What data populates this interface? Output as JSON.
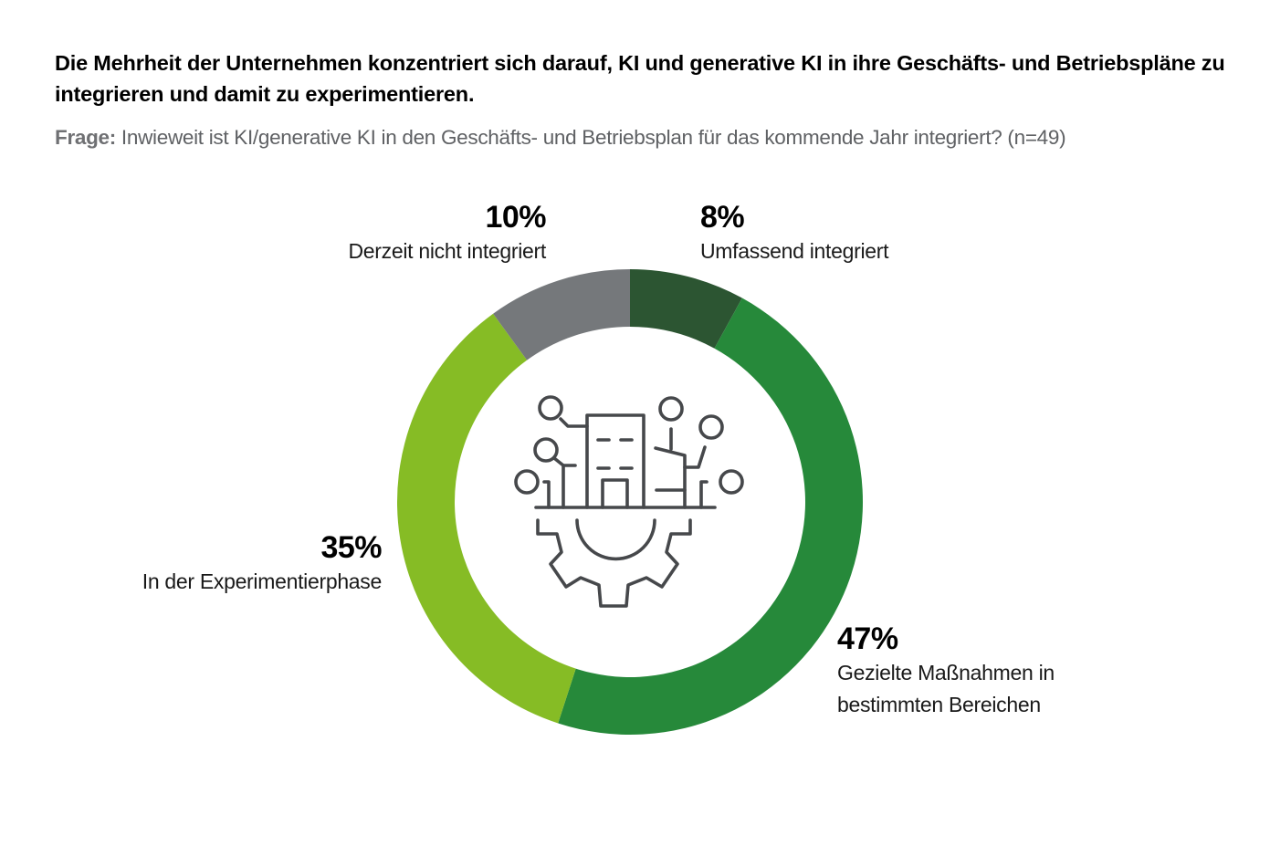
{
  "title": "Die Mehrheit der Unternehmen konzentriert sich darauf, KI und generative KI in ihre Geschäfts- und Betriebspläne zu integrieren und damit zu experimentieren.",
  "question": {
    "prefix": "Frage:",
    "text": " Inwieweit ist KI/generative KI in den Geschäfts- und Betriebsplan für das kommende Jahr integriert? (n=49)"
  },
  "center_icon": "building-gear-network-icon",
  "labels": {
    "umfassend": {
      "pct": "8%",
      "desc": "Umfassend integriert"
    },
    "gezielt": {
      "pct": "47%",
      "desc_line1": "Gezielte Maßnahmen in",
      "desc_line2": "bestimmten Bereichen"
    },
    "experiment": {
      "pct": "35%",
      "desc": "In der Experimentierphase"
    },
    "nicht": {
      "pct": "10%",
      "desc": "Derzeit nicht integriert"
    }
  },
  "chart_data": {
    "type": "pie",
    "subtype": "donut",
    "title": "Die Mehrheit der Unternehmen konzentriert sich darauf, KI und generative KI in ihre Geschäfts- und Betriebspläne zu integrieren und damit zu experimentieren.",
    "subtitle": "Frage: Inwieweit ist KI/generative KI in den Geschäfts- und Betriebsplan für das kommende Jahr integriert? (n=49)",
    "categories": [
      "Umfassend integriert",
      "Gezielte Maßnahmen in bestimmten Bereichen",
      "In der Experimentierphase",
      "Derzeit nicht integriert"
    ],
    "values": [
      8,
      47,
      35,
      10
    ],
    "unit": "%",
    "colors": [
      "#2c5532",
      "#26893a",
      "#86bc25",
      "#75787b"
    ],
    "start_angle": "12 o'clock, clockwise",
    "n": 49
  }
}
